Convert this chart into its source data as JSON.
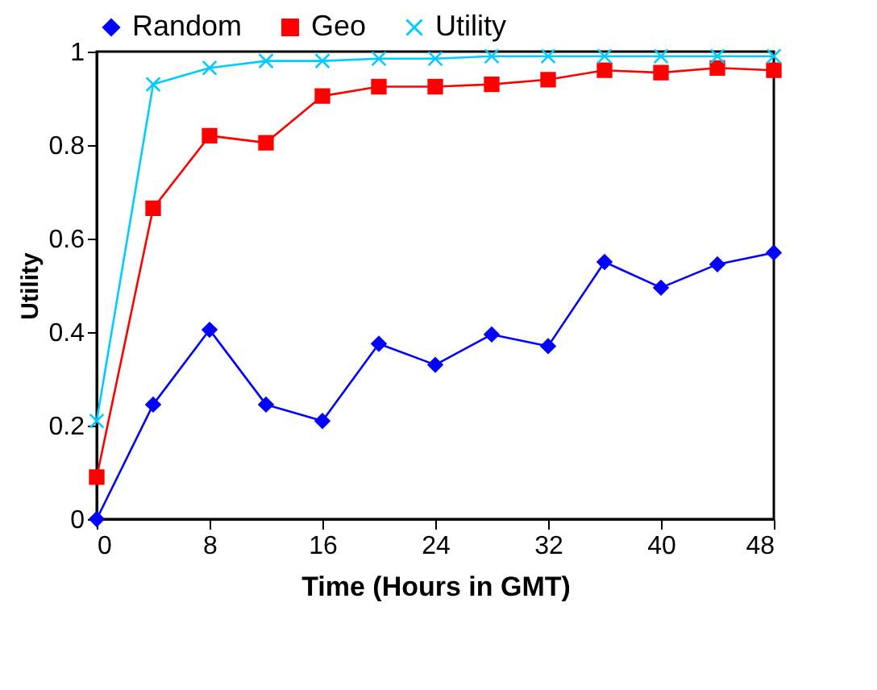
{
  "chart_data": {
    "type": "line",
    "xlabel": "Time (Hours in GMT)",
    "ylabel": "Utility",
    "x": [
      0,
      4,
      8,
      12,
      16,
      20,
      24,
      28,
      32,
      36,
      40,
      44,
      48
    ],
    "series": [
      {
        "name": "Random",
        "color": "#0000ff",
        "marker": "diamond",
        "values": [
          0,
          0.245,
          0.405,
          0.245,
          0.21,
          0.375,
          0.33,
          0.395,
          0.37,
          0.55,
          0.495,
          0.545,
          0.57
        ]
      },
      {
        "name": "Geo",
        "color": "#ff0000",
        "marker": "square",
        "values": [
          0.09,
          0.665,
          0.82,
          0.805,
          0.905,
          0.925,
          0.925,
          0.93,
          0.94,
          0.96,
          0.955,
          0.965,
          0.96
        ]
      },
      {
        "name": "Utility",
        "color": "#00ccff",
        "marker": "cross",
        "values": [
          0.21,
          0.93,
          0.965,
          0.98,
          0.98,
          0.985,
          0.985,
          0.99,
          0.99,
          0.99,
          0.99,
          0.99,
          0.99
        ]
      }
    ],
    "xlim": [
      0,
      48
    ],
    "xticks": [
      0,
      8,
      16,
      24,
      32,
      40,
      48
    ],
    "ylim": [
      0,
      1
    ],
    "yticks": [
      0,
      0.2,
      0.4,
      0.6,
      0.8,
      1
    ],
    "grid": false,
    "legend": "top",
    "line_style": "solid"
  }
}
